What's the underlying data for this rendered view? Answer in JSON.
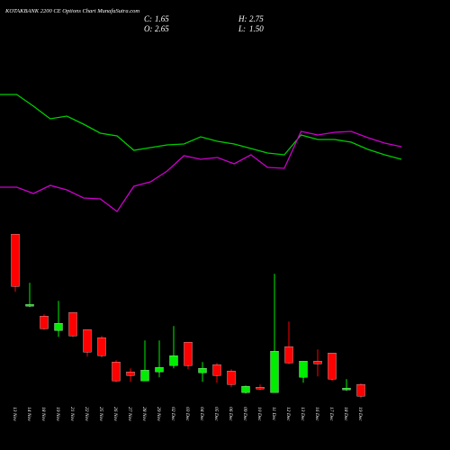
{
  "chart_data": {
    "type": "candlestick",
    "title": "KOTAKBANK 2200 CE Options  Chart MunafaSutra.com",
    "ohlc": [
      {
        "label": "C:",
        "text": "1.65"
      },
      {
        "label": "O:",
        "text": "2.65"
      },
      {
        "label": "H:",
        "text": "2.75"
      },
      {
        "label": "L:",
        "text": "1.50"
      }
    ],
    "categories": [
      "13 Nov",
      "14 Nov",
      "18 Nov",
      "19 Nov",
      "21 Nov",
      "22 Nov",
      "25 Nov",
      "26 Nov",
      "27 Nov",
      "28 Nov",
      "29 Nov",
      "02 Dec",
      "03 Dec",
      "04 Dec",
      "05 Dec",
      "06 Dec",
      "09 Dec",
      "10 Dec",
      "11 Dec",
      "12 Dec",
      "13 Dec",
      "16 Dec",
      "17 Dec",
      "18 Dec",
      "19 Dec"
    ],
    "open": [
      15.51,
      9.35,
      8.5,
      7.27,
      8.81,
      7.35,
      6.65,
      4.58,
      3.73,
      2.96,
      3.73,
      4.27,
      6.27,
      3.65,
      4.35,
      3.81,
      1.96,
      2.42,
      1.96,
      5.89,
      3.27,
      4.65,
      5.35,
      2.19,
      2.65
    ],
    "high": [
      15.51,
      11.35,
      8.66,
      9.81,
      8.81,
      7.35,
      6.81,
      4.73,
      4.04,
      6.42,
      6.42,
      7.66,
      6.27,
      4.58,
      4.5,
      3.96,
      2.57,
      2.65,
      12.12,
      8.04,
      4.65,
      5.65,
      5.35,
      3.11,
      2.75
    ],
    "low": [
      10.58,
      9.27,
      7.35,
      6.73,
      6.73,
      5.04,
      4.96,
      2.88,
      2.88,
      2.96,
      3.27,
      4.04,
      3.96,
      2.88,
      2.81,
      2.42,
      1.88,
      2.19,
      1.96,
      4.42,
      2.81,
      3.34,
      2.96,
      2.11,
      1.5
    ],
    "close": [
      11.04,
      9.5,
      7.42,
      7.89,
      6.81,
      5.42,
      5.12,
      2.96,
      3.42,
      3.88,
      4.11,
      5.12,
      4.27,
      4.04,
      3.42,
      2.65,
      2.5,
      2.27,
      5.5,
      4.5,
      4.65,
      4.42,
      3.11,
      2.34,
      1.65
    ],
    "up_color": "#00ee00",
    "down_color": "#ff0000",
    "ylim": [
      0.9,
      16.3
    ],
    "lines": [
      {
        "color": "#00cc00",
        "values": [
          145,
          145,
          132,
          118,
          121,
          112,
          102,
          99,
          83,
          86,
          89,
          90,
          98,
          93,
          90,
          85,
          80,
          78,
          100,
          95,
          95,
          92,
          84,
          78,
          73
        ]
      },
      {
        "color": "#cc00cc",
        "values": [
          42,
          42,
          35,
          44,
          39,
          30,
          29,
          15,
          43,
          48,
          60,
          77,
          73,
          75,
          68,
          78,
          64,
          63,
          104,
          100,
          103,
          104,
          97,
          91,
          87
        ]
      }
    ],
    "lines_ylim": [
      0,
      160
    ]
  }
}
